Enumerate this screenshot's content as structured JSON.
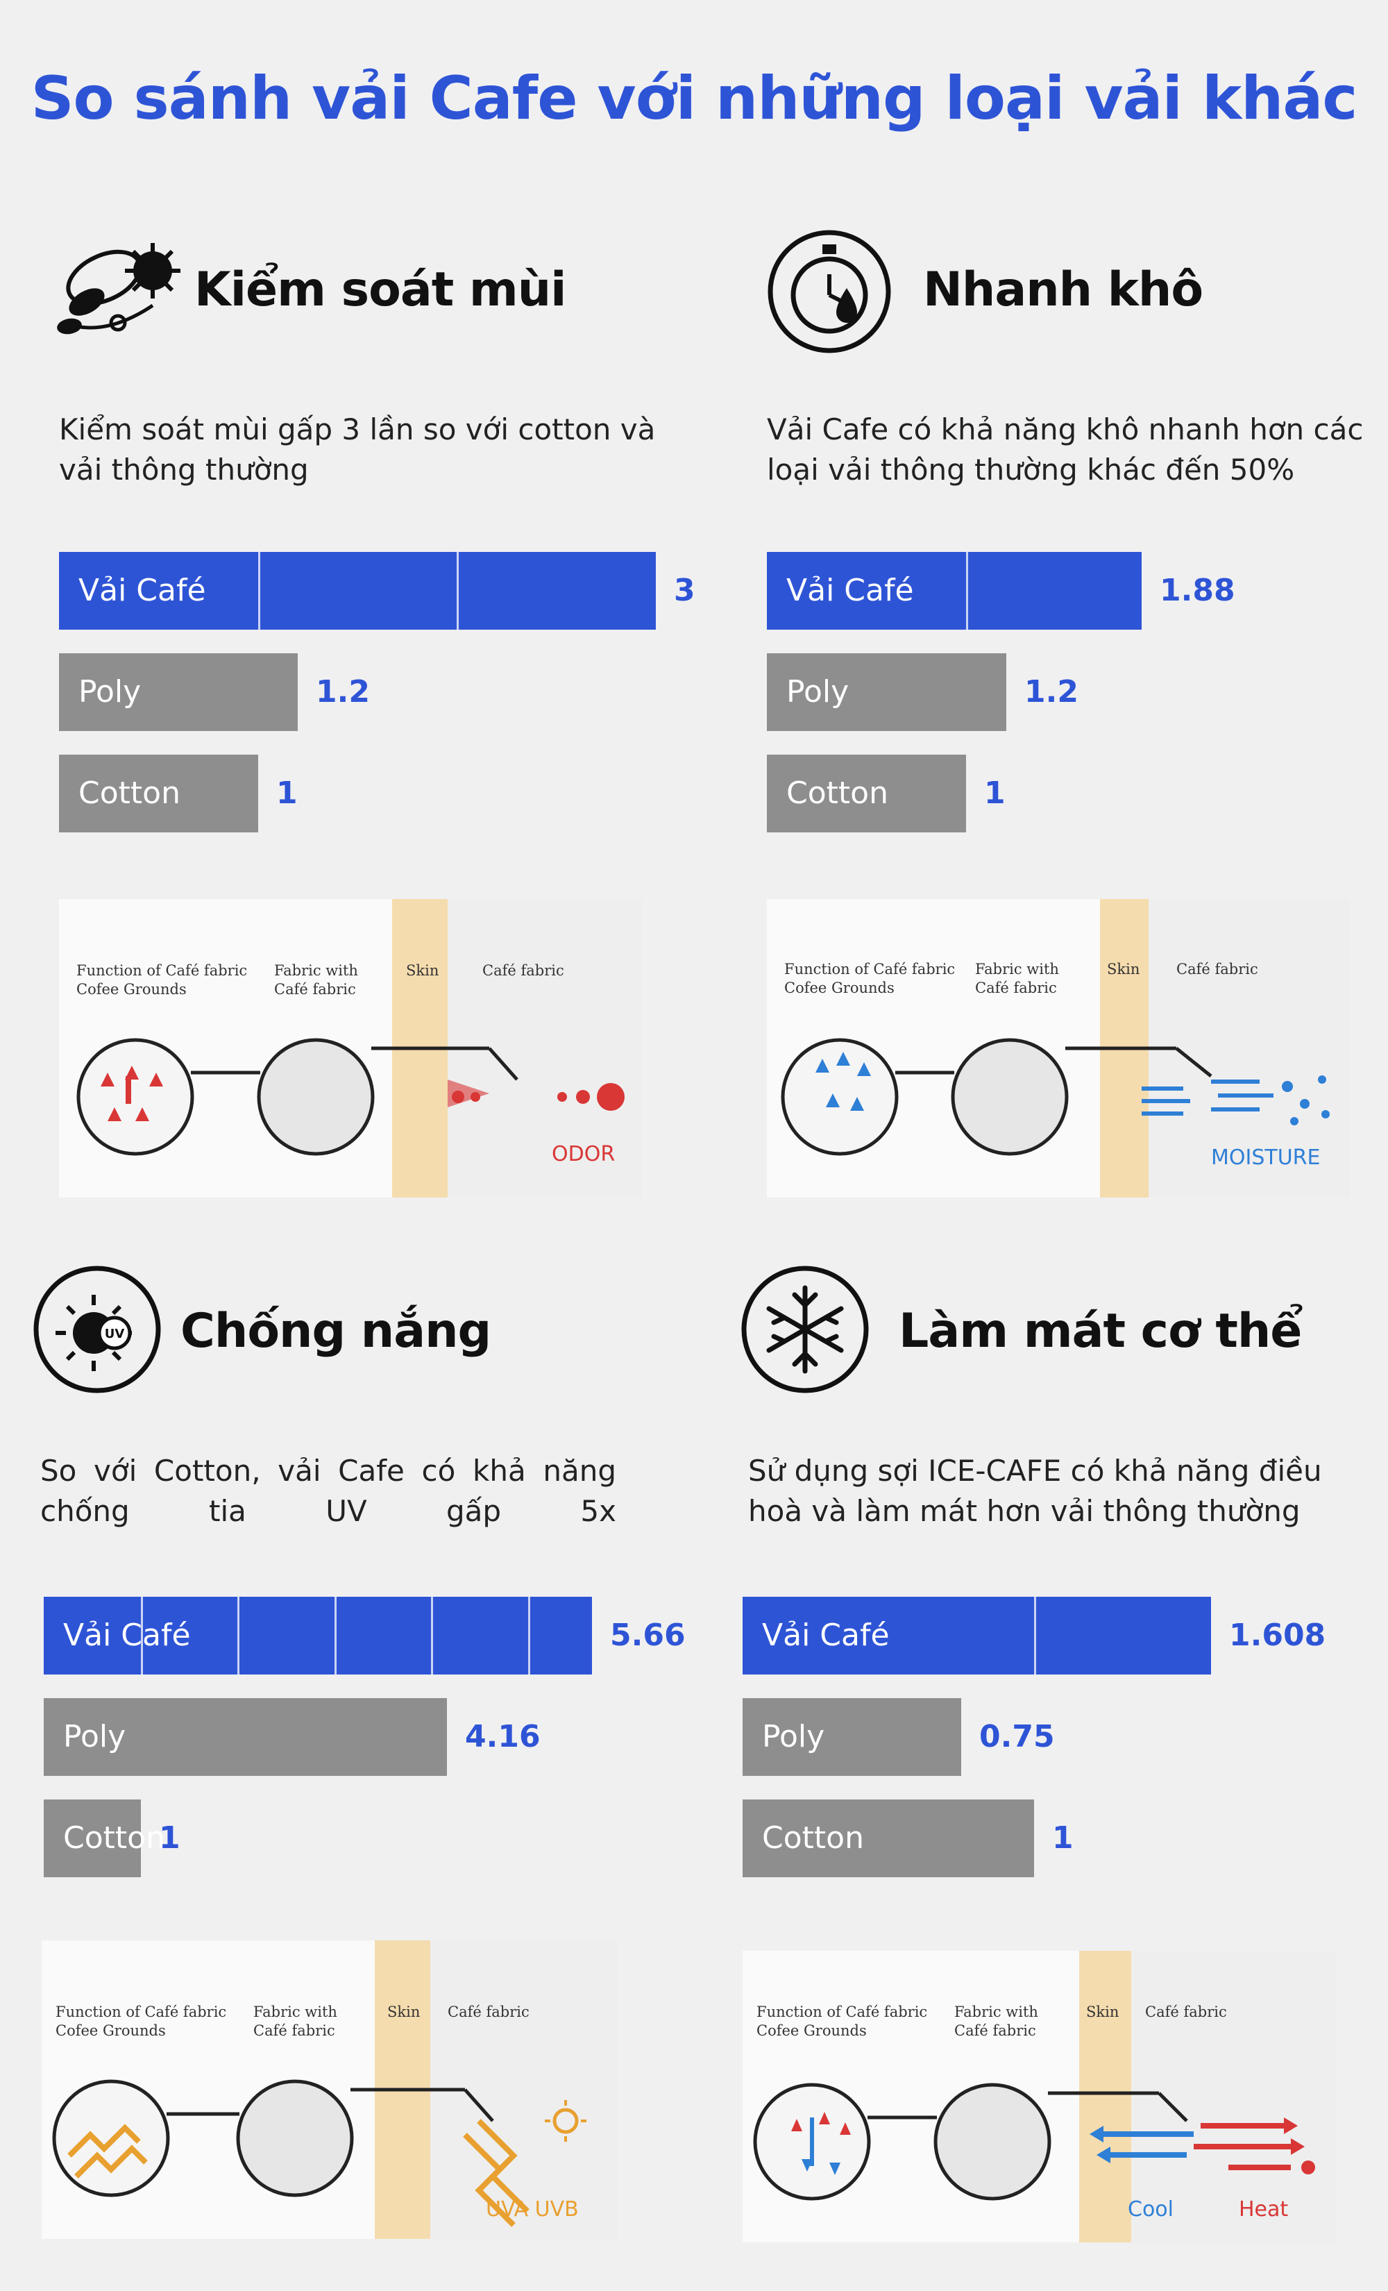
{
  "title": "So sánh vải Cafe với những loại vải khác",
  "colors": {
    "accent": "#2e54d6",
    "gray_bar": "#8e8e8e",
    "odor": "#d93636",
    "moisture": "#2e7fd6",
    "uv": "#e8a030",
    "heat": "#d93636",
    "cool": "#2e7fd6"
  },
  "diagram_labels": {
    "function": [
      "Function of Café fabric",
      "Cofee Grounds"
    ],
    "fabric": [
      "Fabric with",
      "Café fabric"
    ],
    "skin": "Skin",
    "cafe": "Café fabric"
  },
  "panels": [
    {
      "icon": "coffee-plant-icon",
      "title": "Kiểm soát mùi",
      "description": "Kiểm soát mùi gấp 3 lần so với cotton và vải thông thường",
      "diagram_word": "ODOR"
    },
    {
      "icon": "stopwatch-drop-icon",
      "title": "Nhanh khô",
      "description": "Vải Cafe có khả năng khô nhanh hơn các loại vải thông thường khác đến 50%",
      "diagram_word": "MOISTURE"
    },
    {
      "icon": "sun-uv-icon",
      "title": "Chống nắng",
      "description": "So với Cotton, vải Cafe có khả năng chống tia UV gấp 5x",
      "diagram_word": "UVA UVB"
    },
    {
      "icon": "snowflake-icon",
      "title": "Làm mát cơ thể",
      "description": "Sử dụng sợi ICE-CAFE có khả năng điều hoà và làm mát hơn vải thông thường",
      "diagram_words": [
        "Cool",
        "Heat"
      ]
    }
  ],
  "chart_data": [
    {
      "type": "bar",
      "title": "Kiểm soát mùi",
      "categories": [
        "Vải Café",
        "Poly",
        "Cotton"
      ],
      "values": [
        3,
        1.2,
        1
      ],
      "value_labels": [
        "3",
        "1.2",
        "1"
      ]
    },
    {
      "type": "bar",
      "title": "Nhanh khô",
      "categories": [
        "Vải Café",
        "Poly",
        "Cotton"
      ],
      "values": [
        1.88,
        1.2,
        1
      ],
      "value_labels": [
        "1.88",
        "1.2",
        "1"
      ]
    },
    {
      "type": "bar",
      "title": "Chống nắng",
      "categories": [
        "Vải Café",
        "Poly",
        "Cotton"
      ],
      "values": [
        5.66,
        4.16,
        1
      ],
      "value_labels": [
        "5.66",
        "4.16",
        "1"
      ]
    },
    {
      "type": "bar",
      "title": "Làm mát cơ thể",
      "categories": [
        "Vải Café",
        "Poly",
        "Cotton"
      ],
      "values": [
        1.608,
        0.75,
        1
      ],
      "value_labels": [
        "1.608",
        "0.75",
        "1"
      ]
    }
  ]
}
